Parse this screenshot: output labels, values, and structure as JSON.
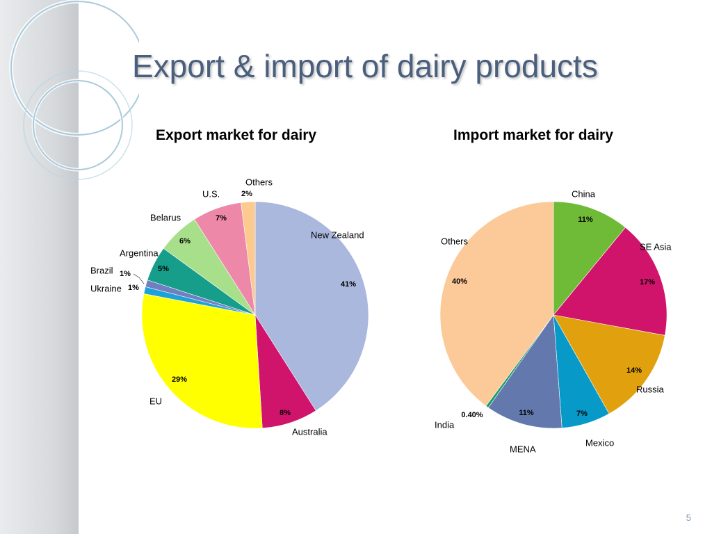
{
  "slide": {
    "title": "Export & import of dairy products",
    "page_number": "5"
  },
  "colors": {
    "title": "#4a5f7d",
    "sidebar": "#d6d9dc",
    "page_number": "#7f95b5"
  },
  "chart_data": [
    {
      "type": "pie",
      "title": "Export market for dairy",
      "start": "top",
      "direction": "clockwise",
      "slices": [
        {
          "label": "New Zealand",
          "value": 41,
          "value_label": "41%",
          "color": "#aab8de"
        },
        {
          "label": "Australia",
          "value": 8,
          "value_label": "8%",
          "color": "#d0136b"
        },
        {
          "label": "EU",
          "value": 29,
          "value_label": "29%",
          "color": "#ffff00"
        },
        {
          "label": "Ukraine",
          "value": 1,
          "value_label": "1%",
          "color": "#1ea0d8"
        },
        {
          "label": "Brazil",
          "value": 1,
          "value_label": "1%",
          "color": "#6f7fc0"
        },
        {
          "label": "Argentina",
          "value": 5,
          "value_label": "5%",
          "color": "#179e8a"
        },
        {
          "label": "Belarus",
          "value": 6,
          "value_label": "6%",
          "color": "#a8df8a"
        },
        {
          "label": "U.S.",
          "value": 7,
          "value_label": "7%",
          "color": "#ee88a8"
        },
        {
          "label": "Others",
          "value": 2,
          "value_label": "2%",
          "color": "#fcc98f"
        }
      ]
    },
    {
      "type": "pie",
      "title": "Import market for dairy",
      "start": "top",
      "direction": "clockwise",
      "slices": [
        {
          "label": "China",
          "value": 11,
          "value_label": "11%",
          "color": "#6fba37"
        },
        {
          "label": "SE Asia",
          "value": 17,
          "value_label": "17%",
          "color": "#d0146b"
        },
        {
          "label": "Russia",
          "value": 14,
          "value_label": "14%",
          "color": "#e1a10e"
        },
        {
          "label": "Mexico",
          "value": 7,
          "value_label": "7%",
          "color": "#0799c8"
        },
        {
          "label": "MENA",
          "value": 11,
          "value_label": "11%",
          "color": "#6379ae"
        },
        {
          "label": "India",
          "value": 0.4,
          "value_label": "0.40%",
          "color": "#179b6a"
        },
        {
          "label": "Others",
          "value": 40,
          "value_label": "40%",
          "color": "#fcc998"
        }
      ]
    }
  ]
}
